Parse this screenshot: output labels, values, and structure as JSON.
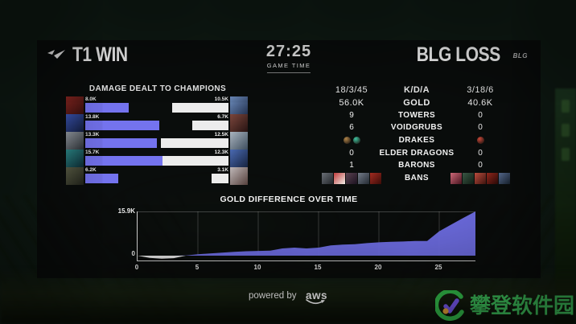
{
  "colors": {
    "accent_purple": "#7473ee",
    "bar_white": "#ececec",
    "watermark_green": "#3dbd5a",
    "watermark_purple": "#7b5bf5",
    "watermark_orange": "#f2a93b"
  },
  "header": {
    "team_left": {
      "label": "T1 WIN",
      "logo_icon": "t1-logo"
    },
    "game_time": {
      "value": "27:25",
      "label": "GAME TIME"
    },
    "team_right": {
      "label": "BLG LOSS",
      "logo_icon": "blg-logo",
      "logo_text": "BLG"
    }
  },
  "damage": {
    "title": "DAMAGE DEALT TO CHAMPIONS",
    "max_value_k": 15.7,
    "left": [
      {
        "label": "8.0K",
        "value": 8.0,
        "icon_colors": [
          "#8c2722",
          "#35100e"
        ]
      },
      {
        "label": "13.8K",
        "value": 13.8,
        "icon_colors": [
          "#3b55b4",
          "#131d3d"
        ]
      },
      {
        "label": "13.3K",
        "value": 13.3,
        "icon_colors": [
          "#9aa0a8",
          "#2c3136"
        ]
      },
      {
        "label": "15.7K",
        "value": 15.7,
        "icon_colors": [
          "#2e8d8d",
          "#0d2a33"
        ]
      },
      {
        "label": "6.2K",
        "value": 6.2,
        "icon_colors": [
          "#5d6048",
          "#20221a"
        ]
      }
    ],
    "right": [
      {
        "label": "10.5K",
        "value": 10.5,
        "icon_colors": [
          "#6f8fc0",
          "#233250"
        ]
      },
      {
        "label": "6.7K",
        "value": 6.7,
        "icon_colors": [
          "#7c463c",
          "#261312"
        ]
      },
      {
        "label": "12.5K",
        "value": 12.5,
        "icon_colors": [
          "#aab4bf",
          "#3e4e5e"
        ]
      },
      {
        "label": "12.3K",
        "value": 12.3,
        "icon_colors": [
          "#4a6ab2",
          "#16233f"
        ]
      },
      {
        "label": "3.1K",
        "value": 3.1,
        "icon_colors": [
          "#c0b8b8",
          "#55403c"
        ]
      }
    ]
  },
  "stats": {
    "rows": [
      {
        "type": "text",
        "left": "18/3/45",
        "label": "K/D/A",
        "right": "3/18/6",
        "large": true
      },
      {
        "type": "text",
        "left": "56.0K",
        "label": "GOLD",
        "right": "40.6K",
        "large": true
      },
      {
        "type": "text",
        "left": "9",
        "label": "TOWERS",
        "right": "0"
      },
      {
        "type": "text",
        "left": "6",
        "label": "VOIDGRUBS",
        "right": "0"
      },
      {
        "type": "icons",
        "label": "DRAKES",
        "left_icons": [
          {
            "name": "mountain-drake-icon",
            "color": "#b08449"
          },
          {
            "name": "ocean-drake-icon",
            "color": "#3fc3a0"
          }
        ],
        "right_icons": [
          {
            "name": "infernal-drake-icon",
            "color": "#d14a3a"
          }
        ]
      },
      {
        "type": "text",
        "left": "0",
        "label": "ELDER DRAGONS",
        "right": "0"
      },
      {
        "type": "text",
        "left": "1",
        "label": "BARONS",
        "right": "0"
      },
      {
        "type": "bans",
        "label": "BANS",
        "left_bans": [
          [
            "#6a6f76",
            "#23262b"
          ],
          [
            "#c23c3c",
            "#f0eee8"
          ],
          [
            "#5a4150",
            "#1c1220"
          ],
          [
            "#737b88",
            "#242a33"
          ],
          [
            "#a32c22",
            "#3c0b07"
          ]
        ],
        "right_bans": [
          [
            "#d06a7a",
            "#4a1520"
          ],
          [
            "#3c5a46",
            "#101f16"
          ],
          [
            "#c05040",
            "#431510"
          ],
          [
            "#99291e",
            "#2d0a07"
          ],
          [
            "#5a6f94",
            "#18222f"
          ]
        ]
      }
    ]
  },
  "chart_data": {
    "type": "area",
    "title": "GOLD DIFFERENCE OVER TIME",
    "xlabel": "",
    "ylabel": "",
    "x": [
      0,
      1,
      2,
      3,
      4,
      5,
      6,
      7,
      8,
      9,
      10,
      11,
      12,
      13,
      14,
      15,
      16,
      17,
      18,
      19,
      20,
      21,
      22,
      23,
      24,
      25,
      26,
      27,
      28
    ],
    "values_k": [
      0,
      -0.8,
      -1.1,
      -0.9,
      0.1,
      0.5,
      0.8,
      1.1,
      1.4,
      1.6,
      1.7,
      1.8,
      2.6,
      2.9,
      2.6,
      2.9,
      3.7,
      4.0,
      4.1,
      4.5,
      4.8,
      5.0,
      5.1,
      5.3,
      5.3,
      8.8,
      11.2,
      13.6,
      15.9
    ],
    "y_max_k": 15.9,
    "y_top_label": "15.9K",
    "y_zero_label": "0",
    "x_ticks": [
      0,
      5,
      10,
      15,
      20,
      25
    ],
    "x_max": 28,
    "area_color": "#7473ee",
    "negative_color": "#e8e8e8",
    "grid": true,
    "legend": "none"
  },
  "footer": {
    "powered_by": "powered by",
    "aws_label": "aws",
    "aws_icon": "aws-logo"
  },
  "watermark": {
    "text": "攀登软件园",
    "logo_icon": "pandeng-logo"
  }
}
